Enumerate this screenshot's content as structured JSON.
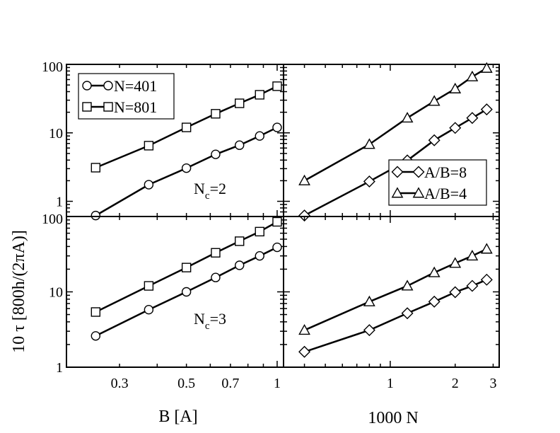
{
  "figure": {
    "ylabel": "10 τ [800h/(2πA)]",
    "xlabel_left": "B [A]",
    "xlabel_right": "1000 N"
  },
  "chart_data": [
    {
      "id": "top-left",
      "type": "line",
      "xscale": "log",
      "yscale": "log",
      "xlim": [
        0.2,
        1.05
      ],
      "ylim": [
        0.6,
        100
      ],
      "yticks": [
        {
          "v": 1,
          "label": "1"
        },
        {
          "v": 10,
          "label": "10"
        },
        {
          "v": 100,
          "label": "100"
        }
      ],
      "xticks": [],
      "annotation": {
        "base": "N",
        "sub": "c",
        "rest": "=2"
      },
      "legend": {
        "position": "top-left",
        "entries": [
          "N=401",
          "N=801"
        ]
      },
      "series": [
        {
          "name": "N=401",
          "marker": "circle",
          "x": [
            0.25,
            0.375,
            0.5,
            0.625,
            0.75,
            0.875,
            1.0
          ],
          "y": [
            0.62,
            1.75,
            3.05,
            4.85,
            6.6,
            9.0,
            12.0
          ]
        },
        {
          "name": "N=801",
          "marker": "square",
          "x": [
            0.25,
            0.375,
            0.5,
            0.625,
            0.75,
            0.875,
            1.0
          ],
          "y": [
            3.1,
            6.5,
            12.0,
            19.0,
            27.0,
            36.0,
            48.0
          ]
        }
      ]
    },
    {
      "id": "top-right",
      "type": "line",
      "xscale": "log",
      "yscale": "log",
      "xlim": [
        0.32,
        3.2
      ],
      "ylim": [
        0.6,
        100
      ],
      "yticks": [],
      "xticks": [],
      "legend": {
        "position": "bottom-right",
        "entries": [
          "A/B=8",
          "A/B=4"
        ]
      },
      "series": [
        {
          "name": "A/B=8",
          "marker": "diamond",
          "x": [
            0.4,
            0.8,
            1.2,
            1.6,
            2.0,
            2.4,
            2.8
          ],
          "y": [
            0.62,
            1.95,
            3.95,
            7.8,
            11.8,
            16.5,
            22.0
          ]
        },
        {
          "name": "A/B=4",
          "marker": "triangle",
          "x": [
            0.4,
            0.8,
            1.2,
            1.6,
            2.0,
            2.4,
            2.8
          ],
          "y": [
            2.0,
            6.8,
            16.5,
            29.0,
            44.0,
            66.0,
            88.0
          ]
        }
      ]
    },
    {
      "id": "bottom-left",
      "type": "line",
      "xscale": "log",
      "yscale": "log",
      "xlim": [
        0.2,
        1.05
      ],
      "ylim": [
        1,
        100
      ],
      "yticks": [
        {
          "v": 1,
          "label": "1"
        },
        {
          "v": 10,
          "label": "10"
        },
        {
          "v": 100,
          "label": "100"
        }
      ],
      "xticks": [
        {
          "v": 0.3,
          "label": "0.3"
        },
        {
          "v": 0.5,
          "label": "0.5"
        },
        {
          "v": 0.7,
          "label": "0.7"
        },
        {
          "v": 1,
          "label": "1"
        }
      ],
      "annotation": {
        "base": "N",
        "sub": "c",
        "rest": "=3"
      },
      "series": [
        {
          "name": "N=401",
          "marker": "circle",
          "x": [
            0.25,
            0.375,
            0.5,
            0.625,
            0.75,
            0.875,
            1.0
          ],
          "y": [
            2.6,
            5.8,
            10.0,
            15.5,
            22.5,
            30.0,
            39.0
          ]
        },
        {
          "name": "N=801",
          "marker": "square",
          "x": [
            0.25,
            0.375,
            0.5,
            0.625,
            0.75,
            0.875,
            1.0
          ],
          "y": [
            5.4,
            12.0,
            21.0,
            33.0,
            47.0,
            63.0,
            85.0
          ]
        }
      ]
    },
    {
      "id": "bottom-right",
      "type": "line",
      "xscale": "log",
      "yscale": "log",
      "xlim": [
        0.32,
        3.2
      ],
      "ylim": [
        1,
        100
      ],
      "yticks": [],
      "xticks": [
        {
          "v": 1,
          "label": "1"
        },
        {
          "v": 2,
          "label": "2"
        },
        {
          "v": 3,
          "label": "3"
        }
      ],
      "series": [
        {
          "name": "A/B=8",
          "marker": "diamond",
          "x": [
            0.4,
            0.8,
            1.2,
            1.6,
            2.0,
            2.4,
            2.8
          ],
          "y": [
            1.6,
            3.1,
            5.2,
            7.4,
            9.9,
            12.0,
            14.5
          ]
        },
        {
          "name": "A/B=4",
          "marker": "triangle",
          "x": [
            0.4,
            0.8,
            1.2,
            1.6,
            2.0,
            2.4,
            2.8
          ],
          "y": [
            3.1,
            7.4,
            12.0,
            18.0,
            24.0,
            30.0,
            37.0
          ]
        }
      ]
    }
  ]
}
